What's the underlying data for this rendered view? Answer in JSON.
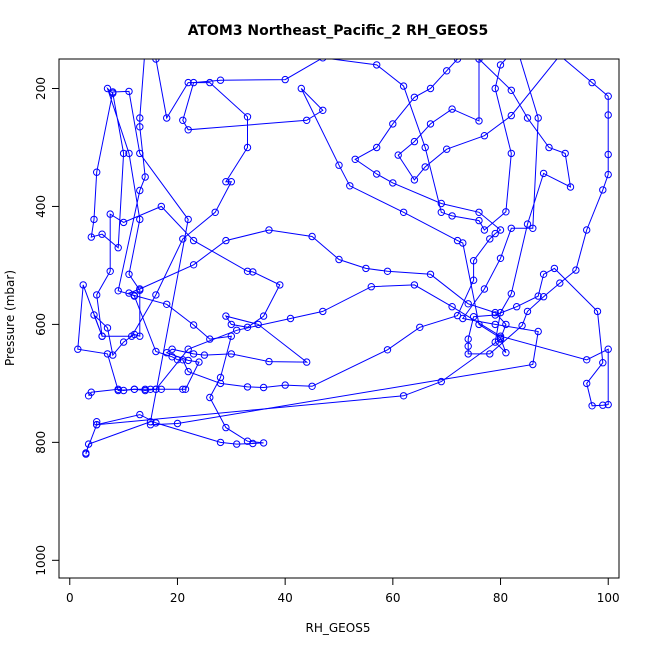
{
  "chart_data": {
    "type": "scatter",
    "title": "ATOM3 Northeast_Pacific_2 RH_GEOS5",
    "xlabel": "RH_GEOS5",
    "ylabel": "Pressure (mbar)",
    "xlim": [
      -2,
      102
    ],
    "ylim": [
      1030,
      150
    ],
    "x_ticks": [
      0,
      20,
      40,
      60,
      80,
      100
    ],
    "y_ticks": [
      200,
      400,
      600,
      800,
      1000
    ],
    "grid": false,
    "color": "#0000ff",
    "series": [
      {
        "values": [
          [
            3,
            820
          ],
          [
            3.5,
            803
          ],
          [
            15,
            765
          ],
          [
            22,
            422
          ],
          [
            13,
            310
          ],
          [
            11,
            205
          ],
          [
            8,
            206
          ],
          [
            5,
            342
          ],
          [
            4.5,
            422
          ],
          [
            4,
            452
          ],
          [
            6,
            447
          ],
          [
            9,
            470
          ],
          [
            10,
            310
          ],
          [
            8,
            208
          ],
          [
            7,
            200
          ],
          [
            11,
            310
          ],
          [
            13,
            422
          ],
          [
            11,
            515
          ],
          [
            13,
            542
          ],
          [
            13,
            620
          ],
          [
            12,
            617
          ],
          [
            10,
            630
          ],
          [
            8,
            652
          ],
          [
            7,
            606
          ],
          [
            4.5,
            584
          ],
          [
            6,
            620
          ],
          [
            2.5,
            533
          ],
          [
            1.5,
            642
          ],
          [
            7,
            650
          ],
          [
            9,
            712
          ],
          [
            12,
            710
          ],
          [
            14,
            710
          ],
          [
            15,
            710
          ],
          [
            16,
            710
          ],
          [
            17,
            710
          ],
          [
            21,
            710
          ],
          [
            21.5,
            710
          ],
          [
            24,
            664
          ],
          [
            22,
            661
          ],
          [
            18,
            648
          ],
          [
            19,
            642
          ],
          [
            23,
            650
          ],
          [
            25,
            652
          ],
          [
            30,
            650
          ],
          [
            37,
            663
          ],
          [
            44,
            664
          ],
          [
            35,
            600
          ],
          [
            29,
            586
          ],
          [
            30,
            600
          ],
          [
            33,
            605
          ],
          [
            36,
            586
          ],
          [
            39,
            533
          ],
          [
            34,
            511
          ],
          [
            33,
            510
          ],
          [
            23,
            458
          ],
          [
            17,
            400
          ],
          [
            10,
            427
          ],
          [
            7.5,
            413
          ],
          [
            7.5,
            510
          ],
          [
            5,
            550
          ],
          [
            6,
            620
          ],
          [
            11.5,
            620
          ],
          [
            16,
            550
          ],
          [
            21,
            455
          ],
          [
            27,
            410
          ],
          [
            30,
            358
          ],
          [
            29,
            358
          ],
          [
            33,
            300
          ],
          [
            33,
            248
          ],
          [
            26,
            190
          ],
          [
            22,
            190
          ],
          [
            18,
            250
          ],
          [
            16,
            150
          ],
          [
            14,
            130
          ],
          [
            13,
            250
          ],
          [
            13,
            265
          ],
          [
            14,
            350
          ],
          [
            13,
            373
          ],
          [
            9,
            543
          ],
          [
            12,
            551
          ],
          [
            18,
            566
          ],
          [
            23,
            601
          ],
          [
            26,
            625
          ],
          [
            30,
            620
          ],
          [
            28,
            690
          ],
          [
            26,
            724
          ],
          [
            29,
            775
          ],
          [
            33,
            798
          ],
          [
            36,
            801
          ],
          [
            34,
            802
          ],
          [
            31,
            803
          ],
          [
            28,
            800
          ],
          [
            16,
            767
          ],
          [
            13,
            753
          ],
          [
            5,
            770
          ],
          [
            3,
            818
          ]
        ]
      },
      {
        "values": [
          [
            15,
            770
          ],
          [
            20,
            768
          ],
          [
            86,
            668
          ],
          [
            87,
            612
          ],
          [
            79,
            600
          ],
          [
            73,
            590
          ],
          [
            77,
            540
          ],
          [
            80,
            488
          ],
          [
            82,
            437
          ],
          [
            86,
            437
          ],
          [
            87,
            250
          ],
          [
            83,
            130
          ],
          [
            80,
            160
          ],
          [
            79,
            200
          ],
          [
            82,
            310
          ],
          [
            81,
            409
          ],
          [
            77,
            440
          ],
          [
            76,
            424
          ],
          [
            71,
            416
          ],
          [
            69,
            410
          ],
          [
            66,
            300
          ],
          [
            62,
            196
          ],
          [
            57,
            160
          ],
          [
            47,
            148
          ],
          [
            40,
            185
          ],
          [
            28,
            186
          ],
          [
            23,
            190
          ],
          [
            21,
            254
          ],
          [
            22,
            270
          ],
          [
            44,
            254
          ],
          [
            47,
            237
          ],
          [
            43,
            200
          ],
          [
            50,
            330
          ],
          [
            52,
            365
          ],
          [
            62,
            410
          ],
          [
            72,
            458
          ],
          [
            73,
            462
          ],
          [
            76,
            600
          ],
          [
            80,
            623
          ],
          [
            81,
            648
          ],
          [
            79,
            630
          ],
          [
            80,
            580
          ],
          [
            82,
            548
          ],
          [
            85,
            430
          ],
          [
            88,
            344
          ],
          [
            93,
            367
          ],
          [
            92,
            310
          ],
          [
            89,
            300
          ],
          [
            85,
            250
          ],
          [
            82,
            203
          ],
          [
            76,
            150
          ],
          [
            76,
            255
          ],
          [
            71,
            235
          ],
          [
            67,
            260
          ],
          [
            64,
            290
          ],
          [
            61,
            313
          ],
          [
            64,
            355
          ],
          [
            66,
            333
          ],
          [
            70,
            303
          ],
          [
            77,
            280
          ],
          [
            82,
            246
          ],
          [
            91,
            144
          ],
          [
            97,
            190
          ],
          [
            100,
            213
          ],
          [
            100,
            245
          ],
          [
            100,
            312
          ],
          [
            100,
            346
          ],
          [
            99,
            372
          ],
          [
            96,
            440
          ],
          [
            94,
            508
          ],
          [
            91,
            530
          ],
          [
            88,
            553
          ],
          [
            85,
            578
          ],
          [
            84,
            602
          ],
          [
            78,
            650
          ],
          [
            74,
            650
          ],
          [
            74,
            637
          ],
          [
            74,
            625
          ],
          [
            75,
            587
          ],
          [
            79,
            584
          ],
          [
            83,
            570
          ],
          [
            87,
            552
          ],
          [
            88,
            515
          ],
          [
            90,
            505
          ],
          [
            98,
            578
          ],
          [
            99,
            665
          ],
          [
            96,
            700
          ],
          [
            97,
            738
          ],
          [
            99,
            737
          ],
          [
            100,
            736
          ],
          [
            100,
            642
          ],
          [
            96,
            660
          ],
          [
            80,
            620
          ],
          [
            71,
            570
          ],
          [
            64,
            533
          ],
          [
            56,
            536
          ],
          [
            47,
            578
          ],
          [
            41,
            590
          ],
          [
            31,
            610
          ],
          [
            22,
            642
          ],
          [
            16,
            710
          ],
          [
            14,
            712
          ],
          [
            12,
            710
          ],
          [
            10,
            712
          ],
          [
            9,
            710
          ],
          [
            4,
            715
          ],
          [
            3.5,
            721
          ]
        ]
      },
      {
        "values": [
          [
            5,
            765
          ],
          [
            5,
            770
          ],
          [
            62,
            721
          ],
          [
            69,
            697
          ],
          [
            80,
            625
          ],
          [
            81,
            600
          ],
          [
            79,
            580
          ],
          [
            74,
            565
          ],
          [
            67,
            515
          ],
          [
            59,
            510
          ],
          [
            55,
            505
          ],
          [
            50,
            490
          ],
          [
            45,
            451
          ],
          [
            37,
            440
          ],
          [
            29,
            458
          ],
          [
            23,
            499
          ],
          [
            13,
            540
          ],
          [
            11,
            547
          ],
          [
            12,
            552
          ],
          [
            16,
            646
          ],
          [
            19,
            655
          ],
          [
            20,
            660
          ],
          [
            21,
            660
          ],
          [
            22,
            680
          ],
          [
            28,
            700
          ],
          [
            33,
            706
          ],
          [
            36,
            707
          ],
          [
            40,
            703
          ],
          [
            45,
            705
          ],
          [
            59,
            643
          ],
          [
            65,
            605
          ],
          [
            72,
            585
          ],
          [
            75,
            525
          ],
          [
            75,
            492
          ],
          [
            78,
            455
          ],
          [
            79,
            446
          ],
          [
            80,
            440
          ],
          [
            76,
            410
          ],
          [
            69,
            395
          ],
          [
            60,
            360
          ],
          [
            57,
            345
          ],
          [
            53,
            320
          ],
          [
            57,
            300
          ],
          [
            60,
            260
          ],
          [
            64,
            215
          ],
          [
            67,
            200
          ],
          [
            70,
            170
          ],
          [
            72,
            150
          ],
          [
            74,
            130
          ]
        ]
      }
    ]
  }
}
